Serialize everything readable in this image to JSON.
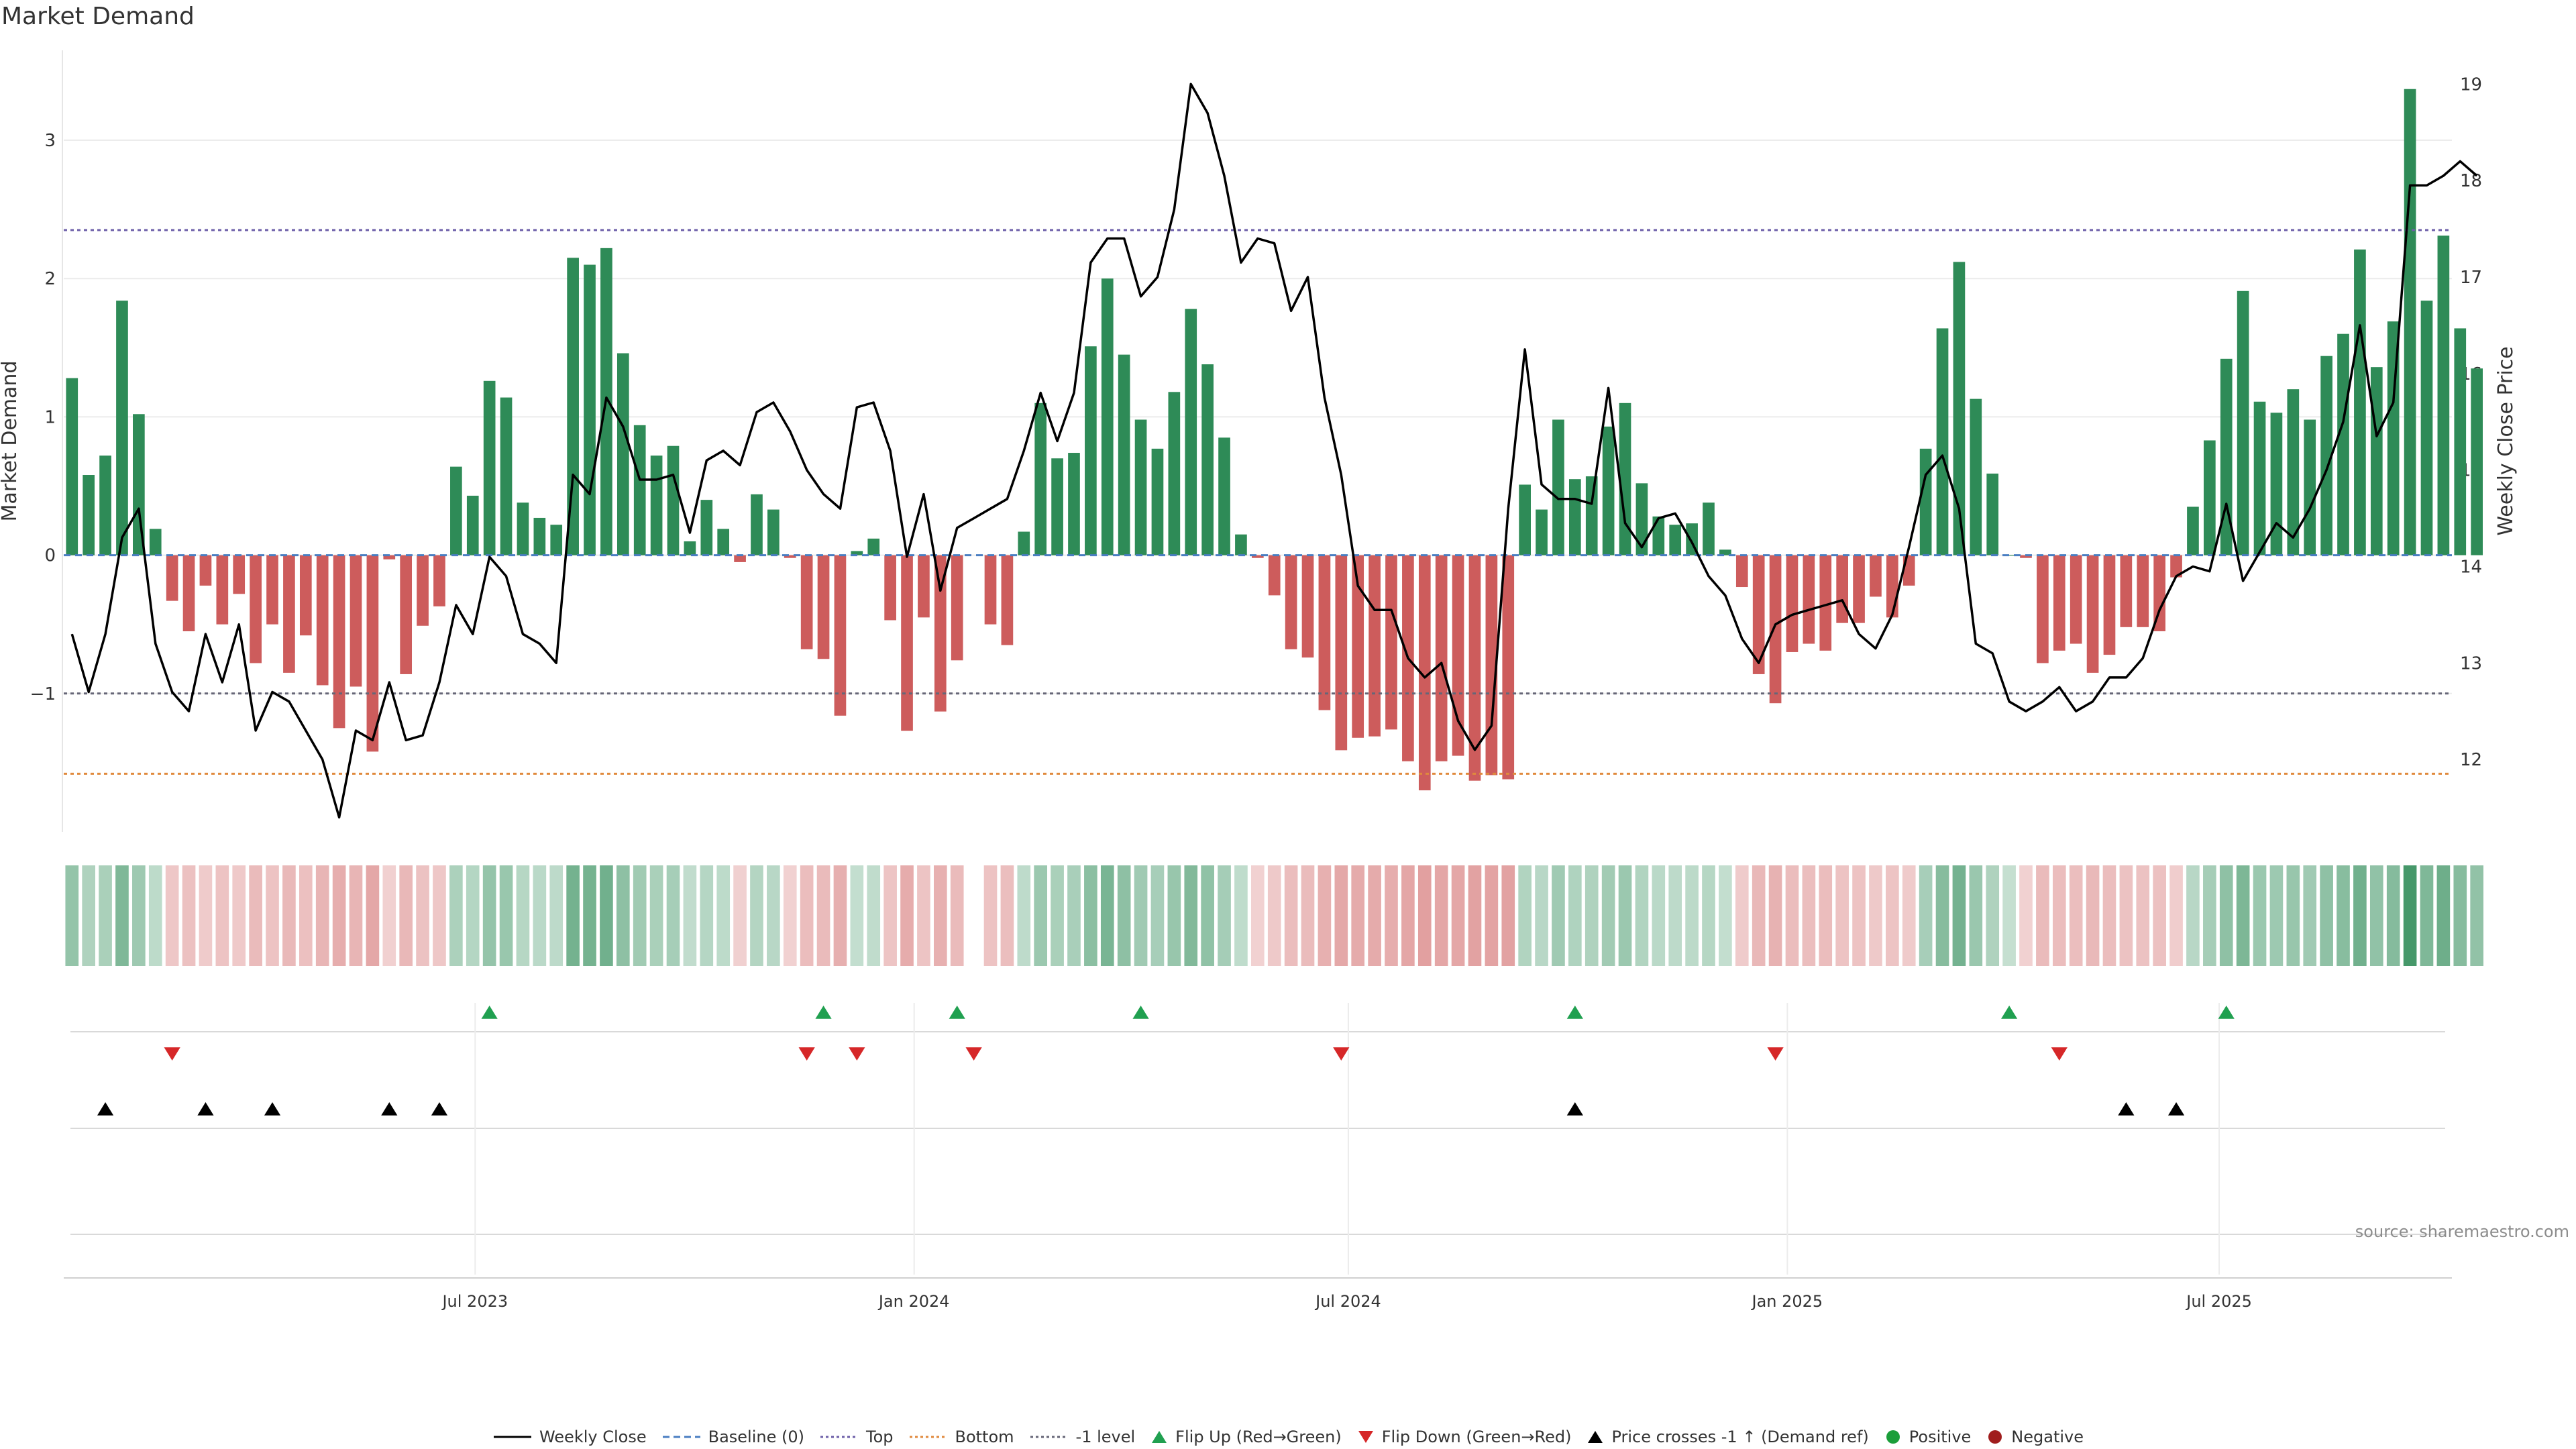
{
  "title": "Market Demand",
  "source": "source: sharemaestro.com",
  "colors": {
    "positive": "#2e8b57",
    "negative": "#cd5c5c",
    "price": "#000000",
    "baseline": "#4a7ec2",
    "top": "#6d5fa8",
    "bottom": "#e0893d",
    "minus1": "#666677",
    "flip_up": "#20a050",
    "flip_down": "#d62728",
    "price_cross": "#000000",
    "positive_dot": "#1b9e3a",
    "negative_dot": "#a01d1d",
    "grid": "#ececec"
  },
  "chart_data": {
    "type": "bar",
    "title": "Market Demand",
    "ylabel": "Market Demand",
    "y2label": "Weekly Close Price",
    "ylim": [
      -2.0,
      3.65
    ],
    "y2lim": [
      11.25,
      19.35
    ],
    "yticks": [
      -1,
      0,
      1,
      2,
      3
    ],
    "ytick_labels": [
      "−1",
      "0",
      "1",
      "2",
      "3"
    ],
    "y2ticks": [
      12,
      13,
      14,
      15,
      16,
      17,
      18,
      19
    ],
    "x_start": "2023-01-13",
    "x_end": "2025-10-03",
    "x_ticks": [
      "2023-07-01",
      "2024-01-01",
      "2024-07-01",
      "2025-01-01",
      "2025-07-01"
    ],
    "x_tick_labels": [
      "Jul 2023",
      "Jan 2024",
      "Jul 2024",
      "Jan 2025",
      "Jul 2025"
    ],
    "levels": {
      "top": 2.35,
      "bottom": -1.58,
      "minus1": -1.0,
      "baseline": 0
    },
    "demand_series": {
      "name": "Market Demand",
      "values": [
        1.28,
        0.58,
        0.72,
        1.84,
        1.02,
        0.19,
        -0.33,
        -0.55,
        -0.22,
        -0.5,
        -0.28,
        -0.78,
        -0.5,
        -0.85,
        -0.58,
        -0.94,
        -1.25,
        -0.95,
        -1.42,
        -0.03,
        -0.86,
        -0.51,
        -0.37,
        0.64,
        0.43,
        1.26,
        1.14,
        0.38,
        0.27,
        0.22,
        2.15,
        2.1,
        2.22,
        1.46,
        0.94,
        0.72,
        0.79,
        0.1,
        0.4,
        0.19,
        -0.05,
        0.44,
        0.33,
        -0.02,
        -0.68,
        -0.75,
        -1.16,
        0.03,
        0.12,
        -0.47,
        -1.27,
        -0.45,
        -1.13,
        -0.76,
        null,
        -0.5,
        -0.65,
        0.17,
        1.1,
        0.7,
        0.74,
        1.51,
        2.0,
        1.45,
        0.98,
        0.77,
        1.18,
        1.78,
        1.38,
        0.85,
        0.15,
        -0.02,
        -0.29,
        -0.68,
        -0.74,
        -1.12,
        -1.41,
        -1.32,
        -1.31,
        -1.26,
        -1.49,
        -1.7,
        -1.49,
        -1.45,
        -1.63,
        -1.59,
        -1.62,
        0.51,
        0.33,
        0.98,
        0.55,
        0.57,
        0.93,
        1.1,
        0.52,
        0.28,
        0.22,
        0.23,
        0.38,
        0.04,
        -0.23,
        -0.86,
        -1.07,
        -0.7,
        -0.64,
        -0.69,
        -0.49,
        -0.49,
        -0.3,
        -0.45,
        -0.22,
        0.77,
        1.64,
        2.12,
        1.13,
        0.59,
        0.0,
        -0.02,
        -0.78,
        -0.69,
        -0.64,
        -0.85,
        -0.72,
        -0.52,
        -0.52,
        -0.55,
        -0.16,
        0.35,
        0.83,
        1.42,
        1.91,
        1.11,
        1.03,
        1.2,
        0.98,
        1.44,
        1.6,
        2.21,
        1.36,
        1.69,
        3.37,
        1.84,
        2.31,
        1.64,
        1.35
      ]
    },
    "price_series": {
      "name": "Weekly Close",
      "values": [
        13.3,
        12.7,
        13.3,
        14.3,
        14.6,
        13.2,
        12.7,
        12.5,
        13.3,
        12.8,
        13.4,
        12.3,
        12.7,
        12.6,
        12.3,
        12.0,
        11.4,
        12.3,
        12.2,
        12.8,
        12.2,
        12.25,
        12.8,
        13.6,
        13.3,
        14.1,
        13.9,
        13.3,
        13.2,
        13.0,
        14.95,
        14.75,
        15.75,
        15.45,
        14.9,
        14.9,
        14.95,
        14.35,
        15.1,
        15.2,
        15.05,
        15.6,
        15.7,
        15.4,
        15.0,
        14.75,
        14.6,
        15.65,
        15.7,
        15.2,
        14.1,
        14.75,
        13.75,
        14.4,
        14.5,
        14.6,
        14.7,
        15.2,
        15.8,
        15.3,
        15.8,
        17.15,
        17.4,
        17.4,
        16.8,
        17.0,
        17.7,
        19.0,
        18.7,
        18.05,
        17.15,
        17.4,
        17.35,
        16.65,
        17.0,
        15.75,
        14.95,
        13.8,
        13.55,
        13.55,
        13.05,
        12.85,
        13.0,
        12.4,
        12.1,
        12.35,
        14.6,
        16.25,
        14.85,
        14.7,
        14.7,
        14.65,
        15.85,
        14.45,
        14.2,
        14.5,
        14.55,
        14.25,
        13.9,
        13.7,
        13.25,
        13.0,
        13.4,
        13.5,
        13.55,
        13.6,
        13.65,
        13.3,
        13.15,
        13.5,
        14.2,
        14.95,
        15.15,
        14.6,
        13.2,
        13.1,
        12.6,
        12.5,
        12.6,
        12.75,
        12.5,
        12.6,
        12.85,
        12.85,
        13.05,
        13.55,
        13.9,
        14.0,
        13.95,
        14.65,
        13.85,
        14.15,
        14.45,
        14.3,
        14.6,
        15.0,
        15.5,
        16.5,
        15.35,
        15.7,
        17.95,
        17.95,
        18.05,
        18.2,
        18.05
      ]
    },
    "flip_up_dates": [
      "2023-07-07",
      "2023-11-24",
      "2024-01-19",
      "2024-04-05",
      "2024-10-04",
      "2025-04-04",
      "2025-07-04"
    ],
    "flip_down_dates": [
      "2023-02-24",
      "2023-11-17",
      "2023-12-08",
      "2024-01-26",
      "2024-06-28",
      "2024-12-27",
      "2025-04-25"
    ],
    "price_cross_dates": [
      "2023-01-27",
      "2023-03-10",
      "2023-04-07",
      "2023-05-26",
      "2023-06-16",
      "2024-10-04",
      "2025-05-23",
      "2025-06-13"
    ],
    "legend": [
      {
        "key": "price",
        "label": "Weekly Close",
        "marker": "solid-line"
      },
      {
        "key": "baseline",
        "label": "Baseline (0)",
        "marker": "dashed-line"
      },
      {
        "key": "top",
        "label": "Top",
        "marker": "dotted-line"
      },
      {
        "key": "bottom",
        "label": "Bottom",
        "marker": "dotted-line"
      },
      {
        "key": "minus1",
        "label": "-1 level",
        "marker": "dotted-line"
      },
      {
        "key": "flip_up",
        "label": "Flip Up (Red→Green)",
        "marker": "triangle-up"
      },
      {
        "key": "flip_down",
        "label": "Flip Down (Green→Red)",
        "marker": "triangle-down"
      },
      {
        "key": "price_cross",
        "label": "Price crosses -1 ↑ (Demand ref)",
        "marker": "triangle-up"
      },
      {
        "key": "positive_dot",
        "label": "Positive",
        "marker": "dot"
      },
      {
        "key": "negative_dot",
        "label": "Negative",
        "marker": "dot"
      }
    ]
  }
}
